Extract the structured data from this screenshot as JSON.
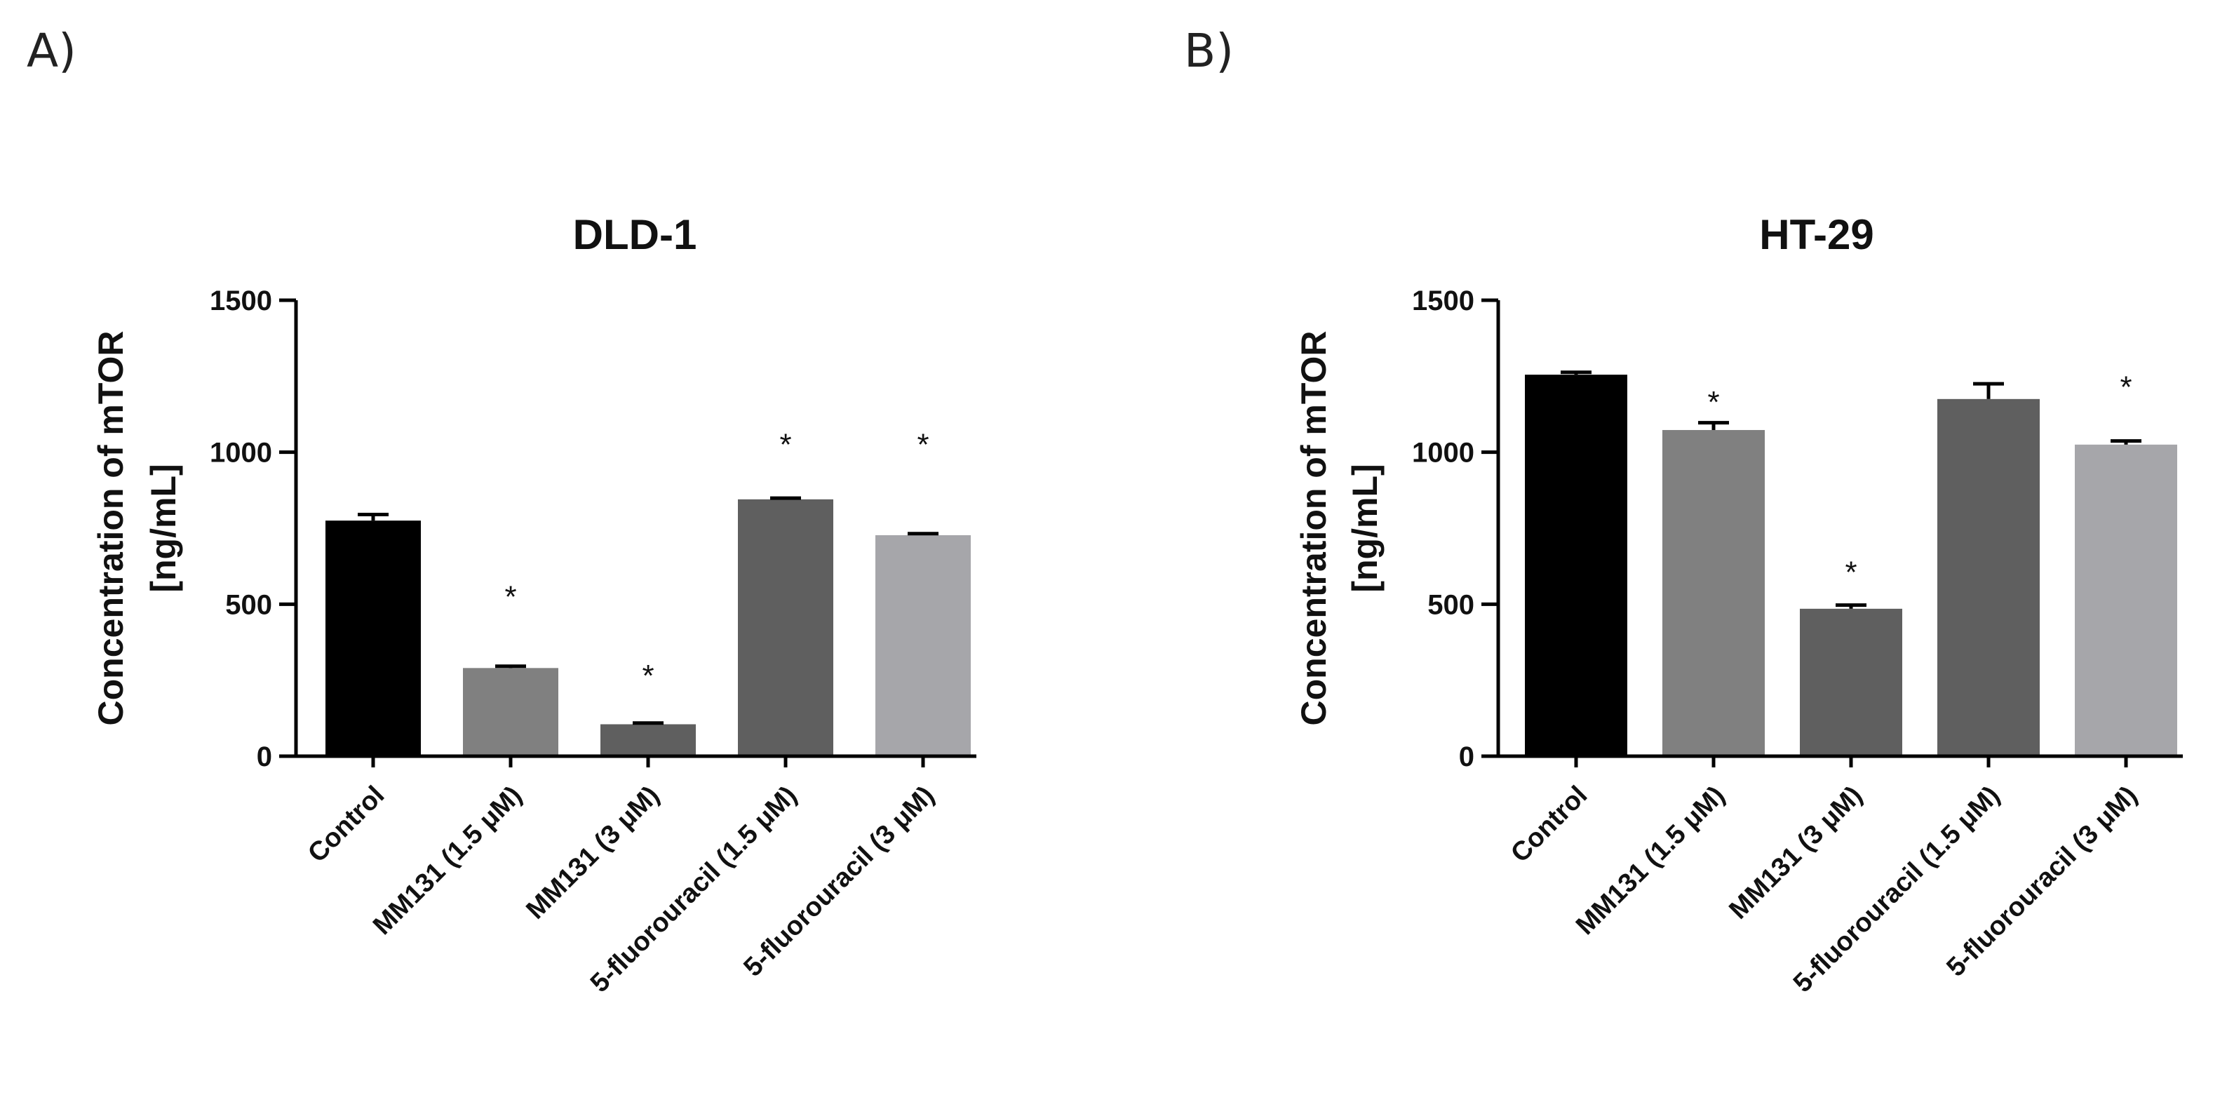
{
  "panels": [
    "A)",
    "B)"
  ],
  "colors": [
    "#000000",
    "#808080",
    "#5f5f5f",
    "#5f5f5f",
    "#a6a6aa"
  ],
  "chart_data": [
    {
      "type": "bar",
      "panel": "A)",
      "title": "DLD-1",
      "ylabel": [
        "Concentration of mTOR",
        "[ng/mL]"
      ],
      "xlabel": "",
      "ylim": [
        0,
        1500
      ],
      "yticks": [
        0,
        500,
        1000,
        1500
      ],
      "categories": [
        "Control",
        "MM131 (1.5 μM)",
        "MM131 (3 μM)",
        "5-fluorouracil (1.5 μM)",
        "5-fluorouracil (3 μM)"
      ],
      "values": [
        775,
        290,
        105,
        845,
        727
      ],
      "errors": [
        20,
        6,
        4,
        4,
        5
      ],
      "significance": [
        "",
        "*",
        "*",
        "*",
        "*"
      ],
      "sig_level": [
        null,
        560,
        300,
        1060,
        1060
      ]
    },
    {
      "type": "bar",
      "panel": "B)",
      "title": "HT-29",
      "ylabel": [
        "Concentration of mTOR",
        "[ng/mL]"
      ],
      "xlabel": "",
      "ylim": [
        0,
        1500
      ],
      "yticks": [
        0,
        500,
        1000,
        1500
      ],
      "categories": [
        "Control",
        "MM131 (1.5 μM)",
        "MM131 (3 μM)",
        "5-fluorouracil (1.5 μM)",
        "5-fluorouracil (3 μM)"
      ],
      "values": [
        1255,
        1073,
        485,
        1175,
        1025
      ],
      "errors": [
        8,
        24,
        12,
        50,
        12
      ],
      "significance": [
        "",
        "*",
        "*",
        "",
        "*"
      ],
      "sig_level": [
        null,
        1200,
        640,
        null,
        1250
      ]
    }
  ]
}
